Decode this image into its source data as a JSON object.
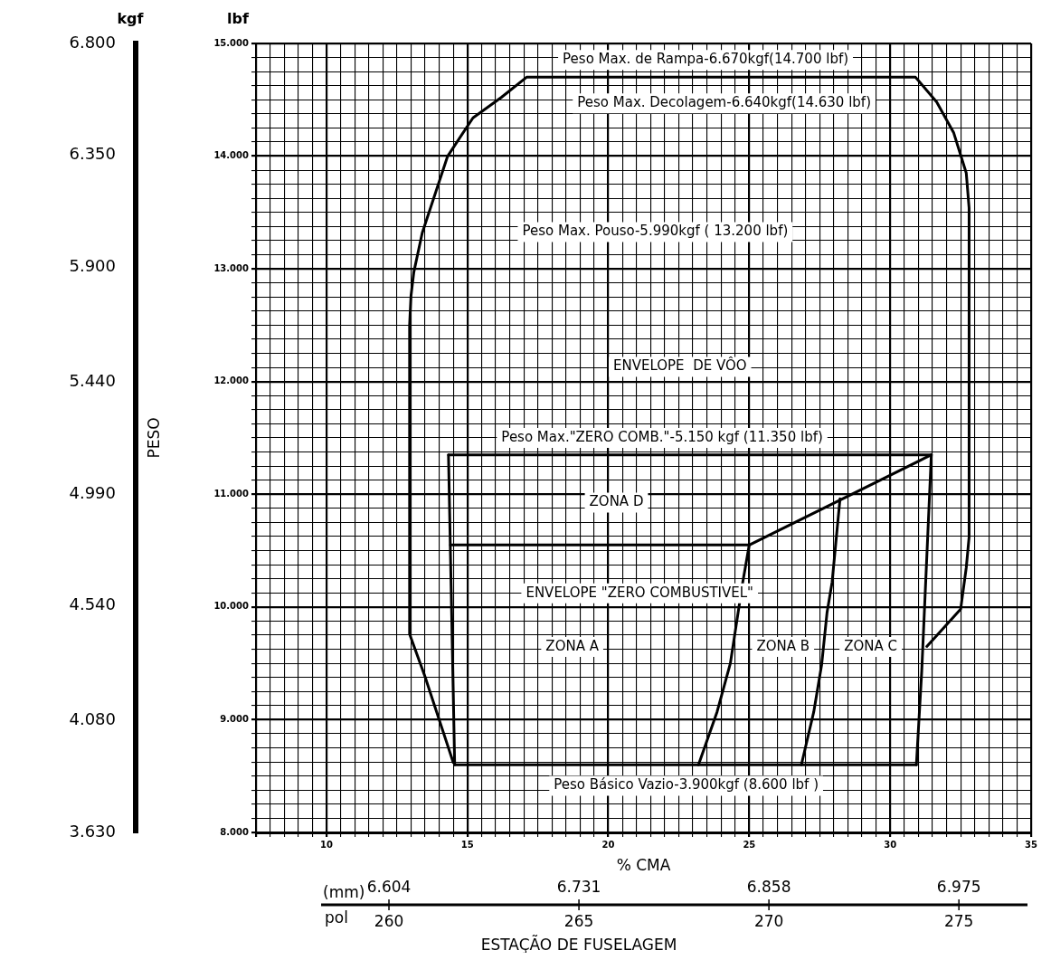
{
  "chart_data": {
    "type": "line",
    "xlabel": "% CMA",
    "ylabel": "lbf",
    "y2label": "kgf",
    "x2label": "pol",
    "xlim": [
      7.5,
      35
    ],
    "xticks": [
      {
        "value": 7.5,
        "label": null
      },
      {
        "value": 8,
        "label": null
      },
      {
        "value": 8.5,
        "label": null
      },
      {
        "value": 9,
        "label": null
      },
      {
        "value": 9.5,
        "label": null
      },
      10,
      {
        "value": 10.5,
        "label": null
      },
      {
        "value": 11,
        "label": null
      },
      {
        "value": 11.5,
        "label": null
      },
      {
        "value": 12,
        "label": null
      },
      {
        "value": 12.5,
        "label": null
      },
      {
        "value": 13,
        "label": null
      },
      {
        "value": 13.5,
        "label": null
      },
      {
        "value": 14,
        "label": null
      },
      {
        "value": 14.5,
        "label": null
      },
      15,
      {
        "value": 15.5,
        "label": null
      },
      {
        "value": 16,
        "label": null
      },
      {
        "value": 16.5,
        "label": null
      },
      {
        "value": 17,
        "label": null
      },
      {
        "value": 17.5,
        "label": null
      },
      {
        "value": 18,
        "label": null
      },
      {
        "value": 18.5,
        "label": null
      },
      {
        "value": 19,
        "label": null
      },
      {
        "value": 19.5,
        "label": null
      },
      20,
      {
        "value": 20.5,
        "label": null
      },
      {
        "value": 21,
        "label": null
      },
      {
        "value": 21.5,
        "label": null
      },
      {
        "value": 22,
        "label": null
      },
      {
        "value": 22.5,
        "label": null
      },
      {
        "value": 23,
        "label": null
      },
      {
        "value": 23.5,
        "label": null
      },
      {
        "value": 24,
        "label": null
      },
      {
        "value": 24.5,
        "label": null
      },
      25,
      {
        "value": 25.5,
        "label": null
      },
      {
        "value": 26,
        "label": null
      },
      {
        "value": 26.5,
        "label": null
      },
      {
        "value": 27,
        "label": null
      },
      {
        "value": 27.5,
        "label": null
      },
      {
        "value": 28,
        "label": null
      },
      {
        "value": 28.5,
        "label": null
      },
      {
        "value": 29,
        "label": null
      },
      {
        "value": 29.5,
        "label": null
      },
      30,
      {
        "value": 30.5,
        "label": null
      },
      {
        "value": 31,
        "label": null
      },
      {
        "value": 31.5,
        "label": null
      },
      {
        "value": 32,
        "label": null
      },
      {
        "value": 32.5,
        "label": null
      },
      {
        "value": 33,
        "label": null
      },
      {
        "value": 33.5,
        "label": null
      },
      {
        "value": 34,
        "label": null
      },
      {
        "value": 34.5,
        "label": null
      },
      35
    ],
    "ylim": [
      8000,
      15000
    ],
    "yticks": [
      {
        "value": 8000,
        "label": "8.000"
      },
      {
        "value": 8125,
        "label": null
      },
      {
        "value": 8250,
        "label": null
      },
      {
        "value": 8375,
        "label": null
      },
      {
        "value": 8500,
        "label": null
      },
      {
        "value": 8625,
        "label": null
      },
      {
        "value": 8750,
        "label": null
      },
      {
        "value": 8875,
        "label": null
      },
      {
        "value": 9000,
        "label": "9.000"
      },
      {
        "value": 9125,
        "label": null
      },
      {
        "value": 9250,
        "label": null
      },
      {
        "value": 9375,
        "label": null
      },
      {
        "value": 9500,
        "label": null
      },
      {
        "value": 9625,
        "label": null
      },
      {
        "value": 9750,
        "label": null
      },
      {
        "value": 9875,
        "label": null
      },
      {
        "value": 10000,
        "label": "10.000"
      },
      {
        "value": 10125,
        "label": null
      },
      {
        "value": 10250,
        "label": null
      },
      {
        "value": 10375,
        "label": null
      },
      {
        "value": 10500,
        "label": null
      },
      {
        "value": 10625,
        "label": null
      },
      {
        "value": 10750,
        "label": null
      },
      {
        "value": 10875,
        "label": null
      },
      {
        "value": 11000,
        "label": "11.000"
      },
      {
        "value": 11125,
        "label": null
      },
      {
        "value": 11250,
        "label": null
      },
      {
        "value": 11375,
        "label": null
      },
      {
        "value": 11500,
        "label": null
      },
      {
        "value": 11625,
        "label": null
      },
      {
        "value": 11750,
        "label": null
      },
      {
        "value": 11875,
        "label": null
      },
      {
        "value": 12000,
        "label": "12.000"
      },
      {
        "value": 12125,
        "label": null
      },
      {
        "value": 12250,
        "label": null
      },
      {
        "value": 12375,
        "label": null
      },
      {
        "value": 12500,
        "label": null
      },
      {
        "value": 12625,
        "label": null
      },
      {
        "value": 12750,
        "label": null
      },
      {
        "value": 12875,
        "label": null
      },
      {
        "value": 13000,
        "label": "13.000"
      },
      {
        "value": 13125,
        "label": null
      },
      {
        "value": 13250,
        "label": null
      },
      {
        "value": 13375,
        "label": null
      },
      {
        "value": 13500,
        "label": null
      },
      {
        "value": 13625,
        "label": null
      },
      {
        "value": 13750,
        "label": null
      },
      {
        "value": 13875,
        "label": null
      },
      {
        "value": 14000,
        "label": "14.000"
      },
      {
        "value": 14125,
        "label": null
      },
      {
        "value": 14250,
        "label": null
      },
      {
        "value": 14375,
        "label": null
      },
      {
        "value": 14500,
        "label": null
      },
      {
        "value": 14625,
        "label": null
      },
      {
        "value": 14750,
        "label": null
      },
      {
        "value": 14875,
        "label": null
      },
      {
        "value": 15000,
        "label": "15.000"
      }
    ],
    "y2lim": [
      3630,
      6800
    ],
    "y2ticks": [
      {
        "value": 3630,
        "label": "3.630"
      },
      {
        "value": 4080,
        "label": "4.080"
      },
      {
        "value": 4540,
        "label": "4.540"
      },
      {
        "value": 4990,
        "label": "4.990"
      },
      {
        "value": 5440,
        "label": "5.440"
      },
      {
        "value": 5900,
        "label": "5.900"
      },
      {
        "value": 6350,
        "label": "6.350"
      },
      {
        "value": 6800,
        "label": "6.800"
      }
    ],
    "x2lim": [
      256.5,
      276.9
    ],
    "x2ticks": [
      260,
      265,
      270,
      275
    ],
    "grid": true,
    "series": [
      {
        "color": "#000000",
        "x": [
          14.5,
          13.5,
          12.95,
          12.95,
          13.0,
          13.1,
          13.4,
          14.3,
          15.2,
          16.2,
          17.1,
          30.9,
          31.65,
          32.25,
          32.7,
          32.8,
          32.8,
          32.7,
          32.5,
          31.3
        ],
        "values": [
          8620,
          9380,
          9760,
          12500,
          12760,
          12970,
          13320,
          14000,
          14340,
          14520,
          14700,
          14700,
          14480,
          14210,
          13850,
          13540,
          10620,
          10350,
          9980,
          9650
        ]
      },
      {
        "color": "#000000",
        "x": [
          14.33,
          31.46
        ],
        "values": [
          11350,
          11350
        ]
      },
      {
        "color": "#000000",
        "x": [
          14.33,
          14.55
        ],
        "values": [
          11350,
          8600
        ]
      },
      {
        "color": "#000000",
        "x": [
          14.55,
          30.93
        ],
        "values": [
          8600,
          8600
        ]
      },
      {
        "color": "#000000",
        "x": [
          30.93,
          31.12,
          31.46
        ],
        "values": [
          8600,
          9430,
          11350
        ]
      },
      {
        "color": "#000000",
        "x": [
          14.4,
          25.0,
          31.46
        ],
        "values": [
          10550,
          10550,
          11350
        ]
      },
      {
        "color": "#000000",
        "x": [
          23.2,
          23.86,
          24.33,
          24.77,
          25.0
        ],
        "values": [
          8600,
          9070,
          9500,
          10220,
          10550
        ]
      },
      {
        "color": "#000000",
        "x": [
          26.85,
          27.29,
          27.57,
          27.76,
          27.94,
          28.22
        ],
        "values": [
          8600,
          9070,
          9490,
          9950,
          10220,
          10960
        ]
      }
    ],
    "annotations": [
      "Peso Max. de Rampa-6.670kgf(14.700 lbf)",
      "Peso Max. Decolagem-6.640kgf(14.630 lbf)",
      "Peso Max. Pouso-5.990kgf ( 13.200 lbf)",
      "ENVELOPE  DE VÔO",
      "Peso Max.\"ZERO COMB.\"-5.150 kgf (11.350 lbf)",
      "ZONA D",
      "ENVELOPE \"ZERO COMBUSTIVEL\"",
      "ZONA A",
      "ZONA B",
      "ZONA C",
      "Peso Básico Vazio-3.900kgf (8.600 lbf )",
      "PESO",
      "ESTAÇÃO DE FUSELAGEM",
      "(mm)",
      "6.604",
      "6.731",
      "6.858",
      "6.975"
    ]
  }
}
